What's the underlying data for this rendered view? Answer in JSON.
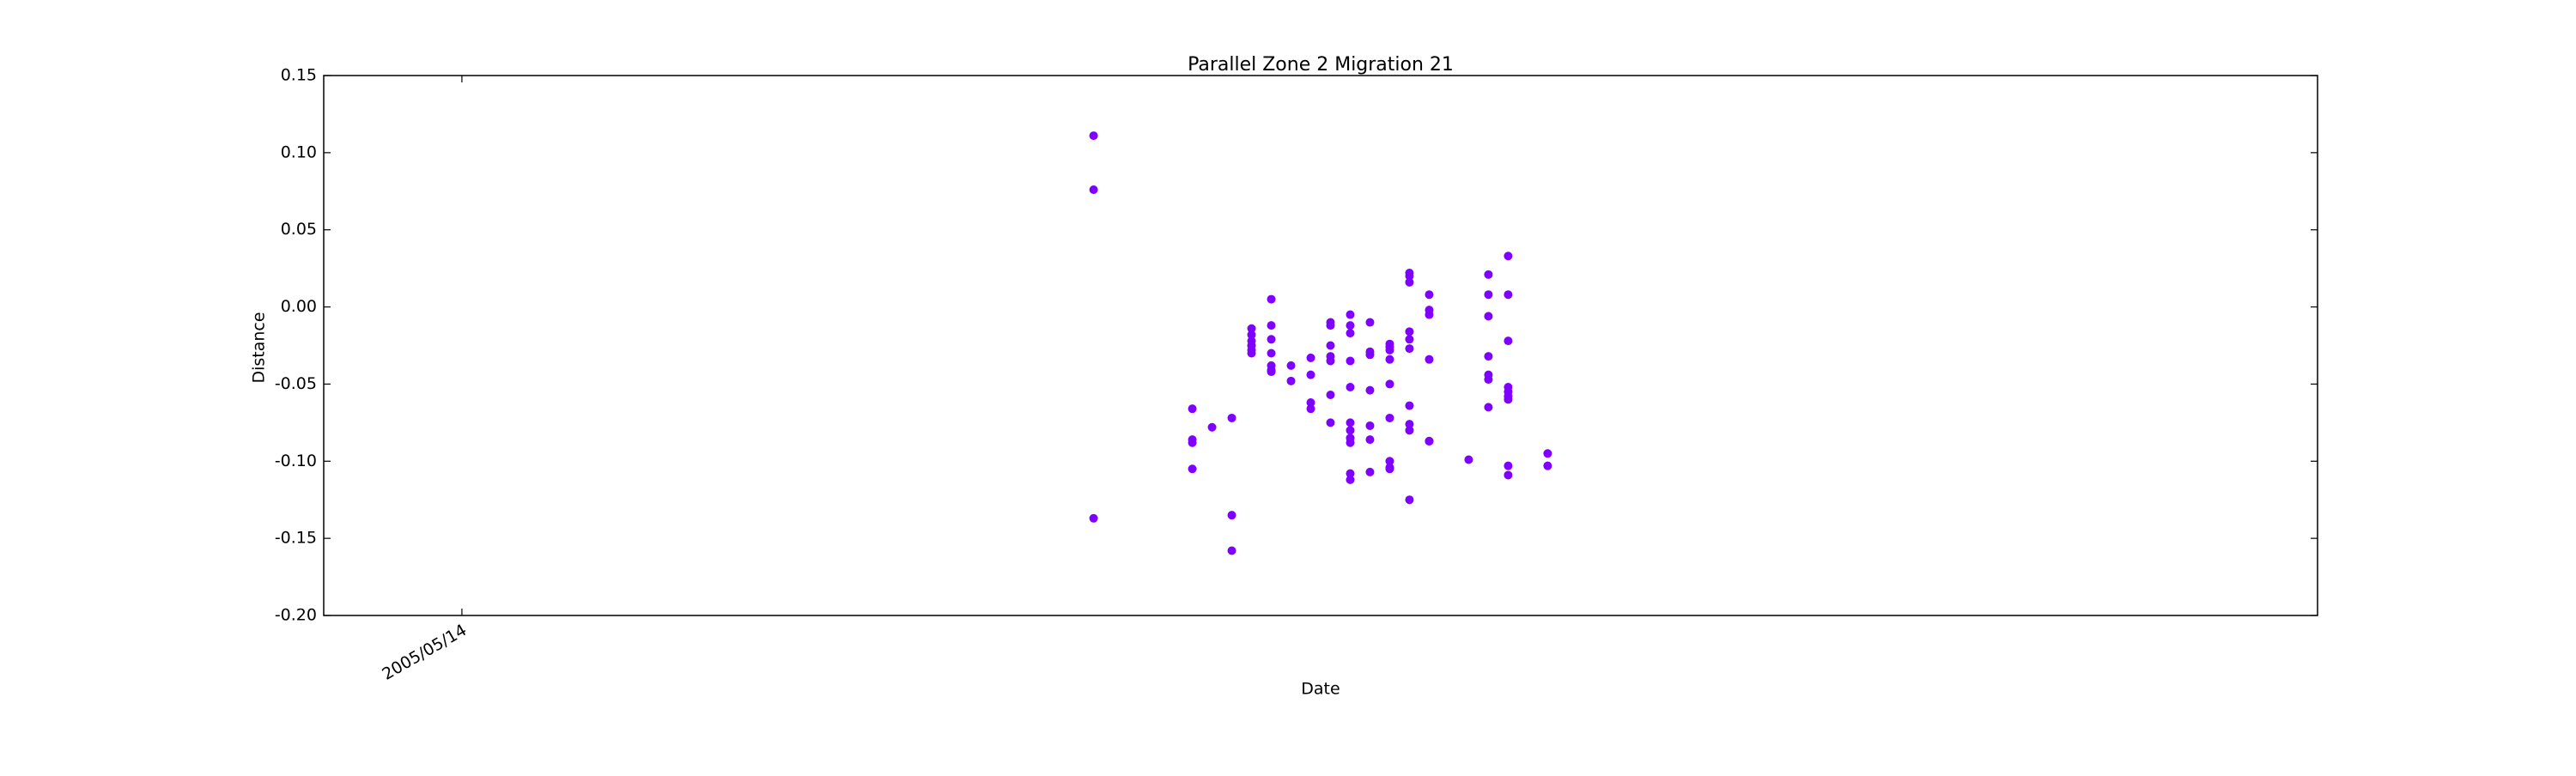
{
  "chart_data": {
    "type": "scatter",
    "title": "Parallel Zone 2 Migration 21",
    "x_label": "Date",
    "y_label": "Distance",
    "color": "#7f00ff",
    "xlim": [
      "2005/05/07",
      "2005/08/16"
    ],
    "xticks": [
      "2005/05/14"
    ],
    "ylim": [
      -0.2,
      0.15
    ],
    "yticks": [
      {
        "value": -0.2,
        "label": "-0.20"
      },
      -0.15,
      {
        "value": -0.1,
        "label": "-0.10"
      },
      -0.05,
      {
        "value": 0,
        "label": "0.00"
      },
      0.05,
      {
        "value": 0.1,
        "label": "0.10"
      },
      0.15
    ],
    "grid": false,
    "x": [
      "2005/06/15",
      "2005/06/15",
      "2005/06/15",
      "2005/06/20",
      "2005/06/20",
      "2005/06/20",
      "2005/06/20",
      "2005/06/21",
      "2005/06/22",
      "2005/06/22",
      "2005/06/22",
      "2005/06/23",
      "2005/06/23",
      "2005/06/23",
      "2005/06/23",
      "2005/06/23",
      "2005/06/23",
      "2005/06/23",
      "2005/06/24",
      "2005/06/24",
      "2005/06/24",
      "2005/06/24",
      "2005/06/24",
      "2005/06/24",
      "2005/06/24",
      "2005/06/25",
      "2005/06/25",
      "2005/06/26",
      "2005/06/26",
      "2005/06/26",
      "2005/06/26",
      "2005/06/27",
      "2005/06/27",
      "2005/06/27",
      "2005/06/27",
      "2005/06/27",
      "2005/06/27",
      "2005/06/27",
      "2005/06/28",
      "2005/06/28",
      "2005/06/28",
      "2005/06/28",
      "2005/06/28",
      "2005/06/28",
      "2005/06/28",
      "2005/06/28",
      "2005/06/28",
      "2005/06/28",
      "2005/06/28",
      "2005/06/29",
      "2005/06/29",
      "2005/06/29",
      "2005/06/29",
      "2005/06/29",
      "2005/06/29",
      "2005/06/29",
      "2005/06/30",
      "2005/06/30",
      "2005/06/30",
      "2005/06/30",
      "2005/06/30",
      "2005/06/30",
      "2005/06/30",
      "2005/06/30",
      "2005/06/30",
      "2005/07/01",
      "2005/07/01",
      "2005/07/01",
      "2005/07/01",
      "2005/07/01",
      "2005/07/01",
      "2005/07/01",
      "2005/07/01",
      "2005/07/01",
      "2005/07/01",
      "2005/07/02",
      "2005/07/02",
      "2005/07/02",
      "2005/07/02",
      "2005/07/02",
      "2005/07/02",
      "2005/07/04",
      "2005/07/05",
      "2005/07/05",
      "2005/07/05",
      "2005/07/05",
      "2005/07/05",
      "2005/07/05",
      "2005/07/05",
      "2005/07/06",
      "2005/07/06",
      "2005/07/06",
      "2005/07/06",
      "2005/07/06",
      "2005/07/06",
      "2005/07/06",
      "2005/07/06",
      "2005/07/06",
      "2005/07/08",
      "2005/07/08"
    ],
    "values": [
      -0.137,
      0.076,
      0.111,
      -0.066,
      -0.086,
      -0.088,
      -0.105,
      -0.078,
      -0.158,
      -0.072,
      -0.135,
      -0.03,
      -0.025,
      -0.022,
      -0.018,
      -0.014,
      -0.028,
      -0.025,
      -0.021,
      -0.041,
      0.005,
      -0.012,
      -0.042,
      -0.03,
      -0.038,
      -0.038,
      -0.048,
      -0.066,
      -0.044,
      -0.062,
      -0.033,
      -0.035,
      -0.075,
      -0.025,
      -0.01,
      -0.032,
      -0.057,
      -0.012,
      -0.005,
      -0.017,
      -0.035,
      -0.052,
      -0.012,
      -0.085,
      -0.108,
      -0.112,
      -0.088,
      -0.075,
      -0.08,
      -0.054,
      -0.029,
      -0.031,
      -0.01,
      -0.077,
      -0.086,
      -0.107,
      -0.1,
      -0.105,
      -0.05,
      -0.034,
      -0.026,
      -0.072,
      -0.104,
      -0.024,
      -0.028,
      -0.021,
      -0.027,
      -0.076,
      -0.125,
      -0.08,
      0.022,
      0.016,
      -0.016,
      -0.064,
      0.02,
      -0.087,
      -0.034,
      -0.005,
      0.008,
      -0.002,
      -0.087,
      -0.099,
      -0.006,
      -0.032,
      0.008,
      0.021,
      -0.065,
      -0.047,
      -0.044,
      -0.058,
      -0.103,
      -0.022,
      0.033,
      -0.055,
      -0.109,
      0.008,
      -0.052,
      -0.06,
      -0.095,
      -0.103
    ]
  }
}
